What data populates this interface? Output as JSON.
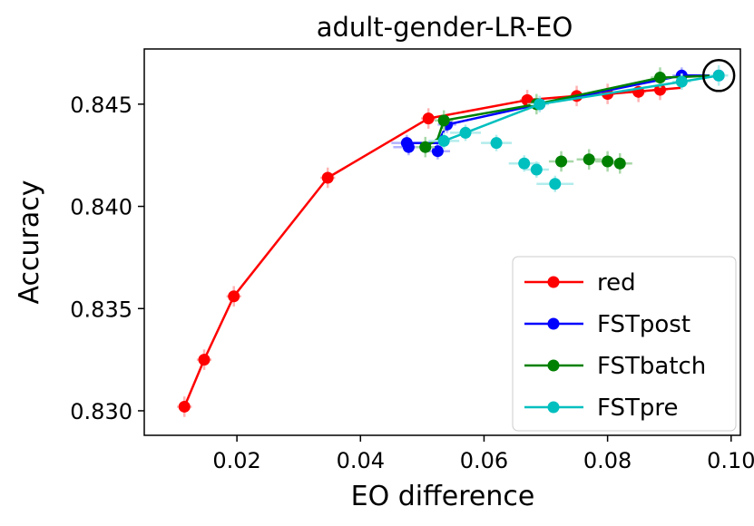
{
  "chart_data": {
    "type": "line",
    "title": "adult-gender-LR-EO",
    "xlabel": "EO difference",
    "ylabel": "Accuracy",
    "xlim": [
      0.005,
      0.1015
    ],
    "ylim": [
      0.8288,
      0.8477
    ],
    "xticks": [
      0.02,
      0.04,
      0.06,
      0.08,
      0.1
    ],
    "xtick_labels": [
      "0.02",
      "0.04",
      "0.06",
      "0.08",
      "0.10"
    ],
    "yticks": [
      0.83,
      0.835,
      0.84,
      0.845
    ],
    "ytick_labels": [
      "0.830",
      "0.835",
      "0.840",
      "0.845"
    ],
    "legend_position": "lower-right",
    "highlight": {
      "x": 0.098,
      "y": 0.8464,
      "shape": "circle"
    },
    "series": [
      {
        "name": "red",
        "color": "#ff0000",
        "errcolor": "#ffb3b3",
        "line": [
          [
            0.0115,
            0.8302
          ],
          [
            0.0147,
            0.8325
          ],
          [
            0.0195,
            0.8356
          ],
          [
            0.0347,
            0.8414
          ],
          [
            0.051,
            0.8443
          ],
          [
            0.067,
            0.8452
          ],
          [
            0.075,
            0.8454
          ],
          [
            0.08,
            0.8455
          ],
          [
            0.088,
            0.8457
          ],
          [
            0.092,
            0.8458
          ]
        ],
        "points": [
          {
            "x": 0.0115,
            "y": 0.8302,
            "xerr": 0.0012,
            "yerr": 0.0005
          },
          {
            "x": 0.0147,
            "y": 0.8325,
            "xerr": 0.0012,
            "yerr": 0.0005
          },
          {
            "x": 0.0195,
            "y": 0.8356,
            "xerr": 0.0012,
            "yerr": 0.0005
          },
          {
            "x": 0.0347,
            "y": 0.8414,
            "xerr": 0.0012,
            "yerr": 0.0005
          },
          {
            "x": 0.051,
            "y": 0.8443,
            "xerr": 0.0012,
            "yerr": 0.0005
          },
          {
            "x": 0.067,
            "y": 0.8452,
            "xerr": 0.0012,
            "yerr": 0.0005
          },
          {
            "x": 0.075,
            "y": 0.8454,
            "xerr": 0.0012,
            "yerr": 0.0005
          },
          {
            "x": 0.08,
            "y": 0.8455,
            "xerr": 0.0012,
            "yerr": 0.0005
          },
          {
            "x": 0.085,
            "y": 0.8456,
            "xerr": 0.0012,
            "yerr": 0.0005
          },
          {
            "x": 0.0885,
            "y": 0.8457,
            "xerr": 0.0012,
            "yerr": 0.0005
          }
        ]
      },
      {
        "name": "FSTpost",
        "color": "#0000ff",
        "errcolor": "#b3b3ff",
        "line": [
          [
            0.0475,
            0.8431
          ],
          [
            0.0495,
            0.8431
          ],
          [
            0.0525,
            0.8431
          ],
          [
            0.054,
            0.844
          ],
          [
            0.069,
            0.845
          ],
          [
            0.092,
            0.8464
          ],
          [
            0.098,
            0.8464
          ]
        ],
        "points": [
          {
            "x": 0.0475,
            "y": 0.8431,
            "xerr": 0.0025,
            "yerr": 0.0004
          },
          {
            "x": 0.0478,
            "y": 0.8429,
            "xerr": 0.0025,
            "yerr": 0.0004
          },
          {
            "x": 0.0525,
            "y": 0.8427,
            "xerr": 0.002,
            "yerr": 0.0004
          },
          {
            "x": 0.054,
            "y": 0.844,
            "xerr": 0.0015,
            "yerr": 0.0004
          },
          {
            "x": 0.069,
            "y": 0.845,
            "xerr": 0.0015,
            "yerr": 0.0004
          },
          {
            "x": 0.092,
            "y": 0.8464,
            "xerr": 0.0015,
            "yerr": 0.0004
          },
          {
            "x": 0.098,
            "y": 0.8464,
            "xerr": 0.0015,
            "yerr": 0.0004
          }
        ]
      },
      {
        "name": "FSTbatch",
        "color": "#008000",
        "errcolor": "#a8d8a8",
        "line": [
          [
            0.0505,
            0.8429
          ],
          [
            0.0525,
            0.8433
          ],
          [
            0.0535,
            0.8442
          ],
          [
            0.0685,
            0.845
          ],
          [
            0.0885,
            0.8463
          ],
          [
            0.098,
            0.8464
          ]
        ],
        "points": [
          {
            "x": 0.0505,
            "y": 0.8429,
            "xerr": 0.0015,
            "yerr": 0.0005
          },
          {
            "x": 0.0535,
            "y": 0.8442,
            "xerr": 0.0015,
            "yerr": 0.0005
          },
          {
            "x": 0.0685,
            "y": 0.845,
            "xerr": 0.0015,
            "yerr": 0.0005
          },
          {
            "x": 0.0885,
            "y": 0.8463,
            "xerr": 0.0015,
            "yerr": 0.0005
          },
          {
            "x": 0.0725,
            "y": 0.8422,
            "xerr": 0.002,
            "yerr": 0.0005
          },
          {
            "x": 0.077,
            "y": 0.8423,
            "xerr": 0.002,
            "yerr": 0.0005
          },
          {
            "x": 0.08,
            "y": 0.8422,
            "xerr": 0.002,
            "yerr": 0.0005
          },
          {
            "x": 0.082,
            "y": 0.8421,
            "xerr": 0.002,
            "yerr": 0.0005
          }
        ]
      },
      {
        "name": "FSTpre",
        "color": "#00bfbf",
        "errcolor": "#b3ecec",
        "line": [
          [
            0.0535,
            0.8432
          ],
          [
            0.057,
            0.8436
          ],
          [
            0.069,
            0.845
          ],
          [
            0.092,
            0.8461
          ],
          [
            0.098,
            0.8464
          ]
        ],
        "points": [
          {
            "x": 0.0535,
            "y": 0.8432,
            "xerr": 0.0025,
            "yerr": 0.0004
          },
          {
            "x": 0.057,
            "y": 0.8436,
            "xerr": 0.0025,
            "yerr": 0.0004
          },
          {
            "x": 0.062,
            "y": 0.8431,
            "xerr": 0.0025,
            "yerr": 0.0004
          },
          {
            "x": 0.0665,
            "y": 0.8421,
            "xerr": 0.0025,
            "yerr": 0.0004
          },
          {
            "x": 0.0685,
            "y": 0.8418,
            "xerr": 0.002,
            "yerr": 0.0004
          },
          {
            "x": 0.0715,
            "y": 0.8411,
            "xerr": 0.003,
            "yerr": 0.0004
          },
          {
            "x": 0.069,
            "y": 0.845,
            "xerr": 0.0015,
            "yerr": 0.0004
          },
          {
            "x": 0.092,
            "y": 0.8461,
            "xerr": 0.0015,
            "yerr": 0.0004
          },
          {
            "x": 0.098,
            "y": 0.8464,
            "xerr": 0.0015,
            "yerr": 0.0005
          }
        ]
      }
    ]
  }
}
